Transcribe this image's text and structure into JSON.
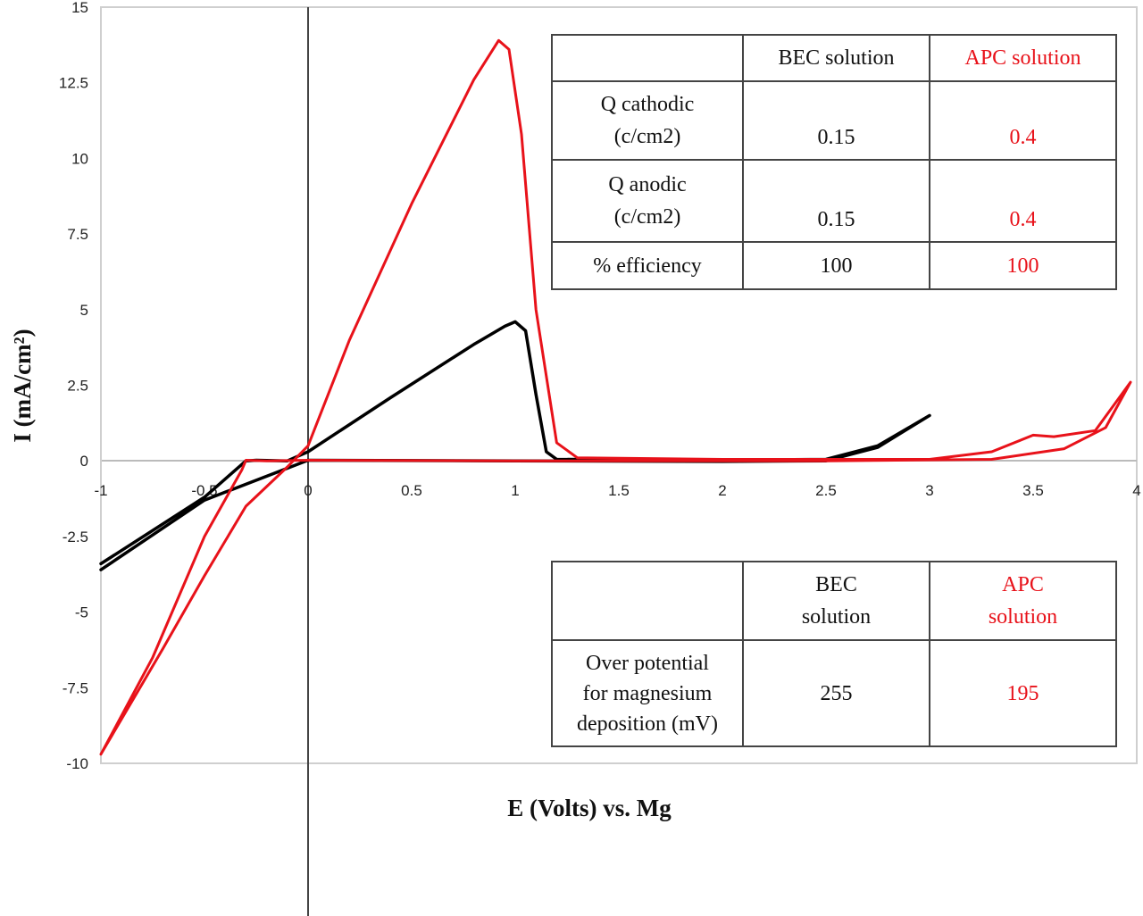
{
  "chart_data": {
    "type": "line",
    "xlabel": "E (Volts) vs. Mg",
    "ylabel": "I (mA/cm²)",
    "xlim": [
      -1,
      4
    ],
    "ylim": [
      -10,
      15
    ],
    "x_ticks": [
      "-1",
      "-0.5",
      "0",
      "0.5",
      "1",
      "1.5",
      "2",
      "2.5",
      "3",
      "3.5",
      "4"
    ],
    "y_ticks": [
      "15",
      "12.5",
      "10",
      "7.5",
      "5",
      "2.5",
      "0",
      "-2.5",
      "-5",
      "-7.5",
      "-10"
    ],
    "grid": false,
    "series": [
      {
        "color": "#000000",
        "points": [
          [
            -1,
            -3.4
          ],
          [
            -0.5,
            -1.2
          ],
          [
            -0.3,
            0.0
          ],
          [
            -0.25,
            0.02
          ],
          [
            -0.1,
            0.0
          ],
          [
            0,
            0.3
          ],
          [
            0.4,
            2.1
          ],
          [
            0.8,
            3.85
          ],
          [
            0.95,
            4.45
          ],
          [
            1.0,
            4.6
          ],
          [
            1.05,
            4.3
          ],
          [
            1.1,
            2.2
          ],
          [
            1.15,
            0.3
          ],
          [
            1.2,
            0.05
          ],
          [
            2.0,
            0.02
          ],
          [
            2.5,
            0.05
          ],
          [
            2.75,
            0.5
          ],
          [
            3.0,
            1.5
          ],
          [
            2.75,
            0.45
          ],
          [
            2.5,
            0.0
          ],
          [
            2.0,
            -0.02
          ],
          [
            1.0,
            0.0
          ],
          [
            0.0,
            0.02
          ],
          [
            -0.5,
            -1.3
          ],
          [
            -1,
            -3.6
          ]
        ]
      },
      {
        "color": "#e8121a",
        "points": [
          [
            -1,
            -9.7
          ],
          [
            -0.7,
            -6.2
          ],
          [
            -0.5,
            -3.8
          ],
          [
            -0.3,
            -1.5
          ],
          [
            -0.1,
            -0.2
          ],
          [
            0,
            0.5
          ],
          [
            0.2,
            4.0
          ],
          [
            0.5,
            8.5
          ],
          [
            0.8,
            12.6
          ],
          [
            0.92,
            13.9
          ],
          [
            0.97,
            13.6
          ],
          [
            1.03,
            10.8
          ],
          [
            1.1,
            5.0
          ],
          [
            1.2,
            0.6
          ],
          [
            1.3,
            0.1
          ],
          [
            2.0,
            0.05
          ],
          [
            3.0,
            0.05
          ],
          [
            3.3,
            0.3
          ],
          [
            3.5,
            0.85
          ],
          [
            3.6,
            0.8
          ],
          [
            3.8,
            1.0
          ],
          [
            3.97,
            2.6
          ],
          [
            3.85,
            1.1
          ],
          [
            3.65,
            0.4
          ],
          [
            3.3,
            0.05
          ],
          [
            2.5,
            0.0
          ],
          [
            1.0,
            0.0
          ],
          [
            0.0,
            0.02
          ],
          [
            -0.2,
            0.0
          ],
          [
            -0.3,
            0.02
          ],
          [
            -0.32,
            -0.3
          ],
          [
            -0.5,
            -2.5
          ],
          [
            -0.75,
            -6.5
          ],
          [
            -1,
            -9.7
          ]
        ]
      }
    ]
  },
  "table_top": {
    "headers": [
      "",
      "BEC solution",
      "APC solution"
    ],
    "rows": [
      {
        "label_lines": [
          "Q cathodic",
          "(c/cm2)"
        ],
        "bec": "0.15",
        "apc": "0.4"
      },
      {
        "label_lines": [
          "Q anodic",
          "(c/cm2)"
        ],
        "bec": "0.15",
        "apc": "0.4"
      },
      {
        "label_lines": [
          "% efficiency"
        ],
        "bec": "100",
        "apc": "100"
      }
    ]
  },
  "table_bottom": {
    "header_bec": [
      "BEC",
      "solution"
    ],
    "header_apc": [
      "APC",
      "solution"
    ],
    "row_label": [
      "Over potential",
      "for magnesium",
      "deposition (mV)"
    ],
    "bec": "255",
    "apc": "195"
  },
  "colors": {
    "bec": "#000000",
    "apc": "#e8121a"
  }
}
